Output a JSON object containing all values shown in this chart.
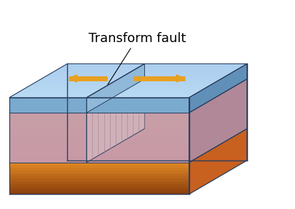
{
  "title": "Transform fault",
  "title_fontsize": 13,
  "arrow_color": "#E8A020",
  "outline_color": "#4a6080",
  "bg_color": "#ffffff",
  "top_layer_color_left": "#a8c8e8",
  "top_layer_color_right": "#b8d4f0",
  "mid_layer_color": "#c8a0b0",
  "bottom_layer_color_top": "#e87840",
  "bottom_layer_color_bottom": "#d06020",
  "fault_hatch_color": "#808080",
  "edge_color": "#2a4060"
}
